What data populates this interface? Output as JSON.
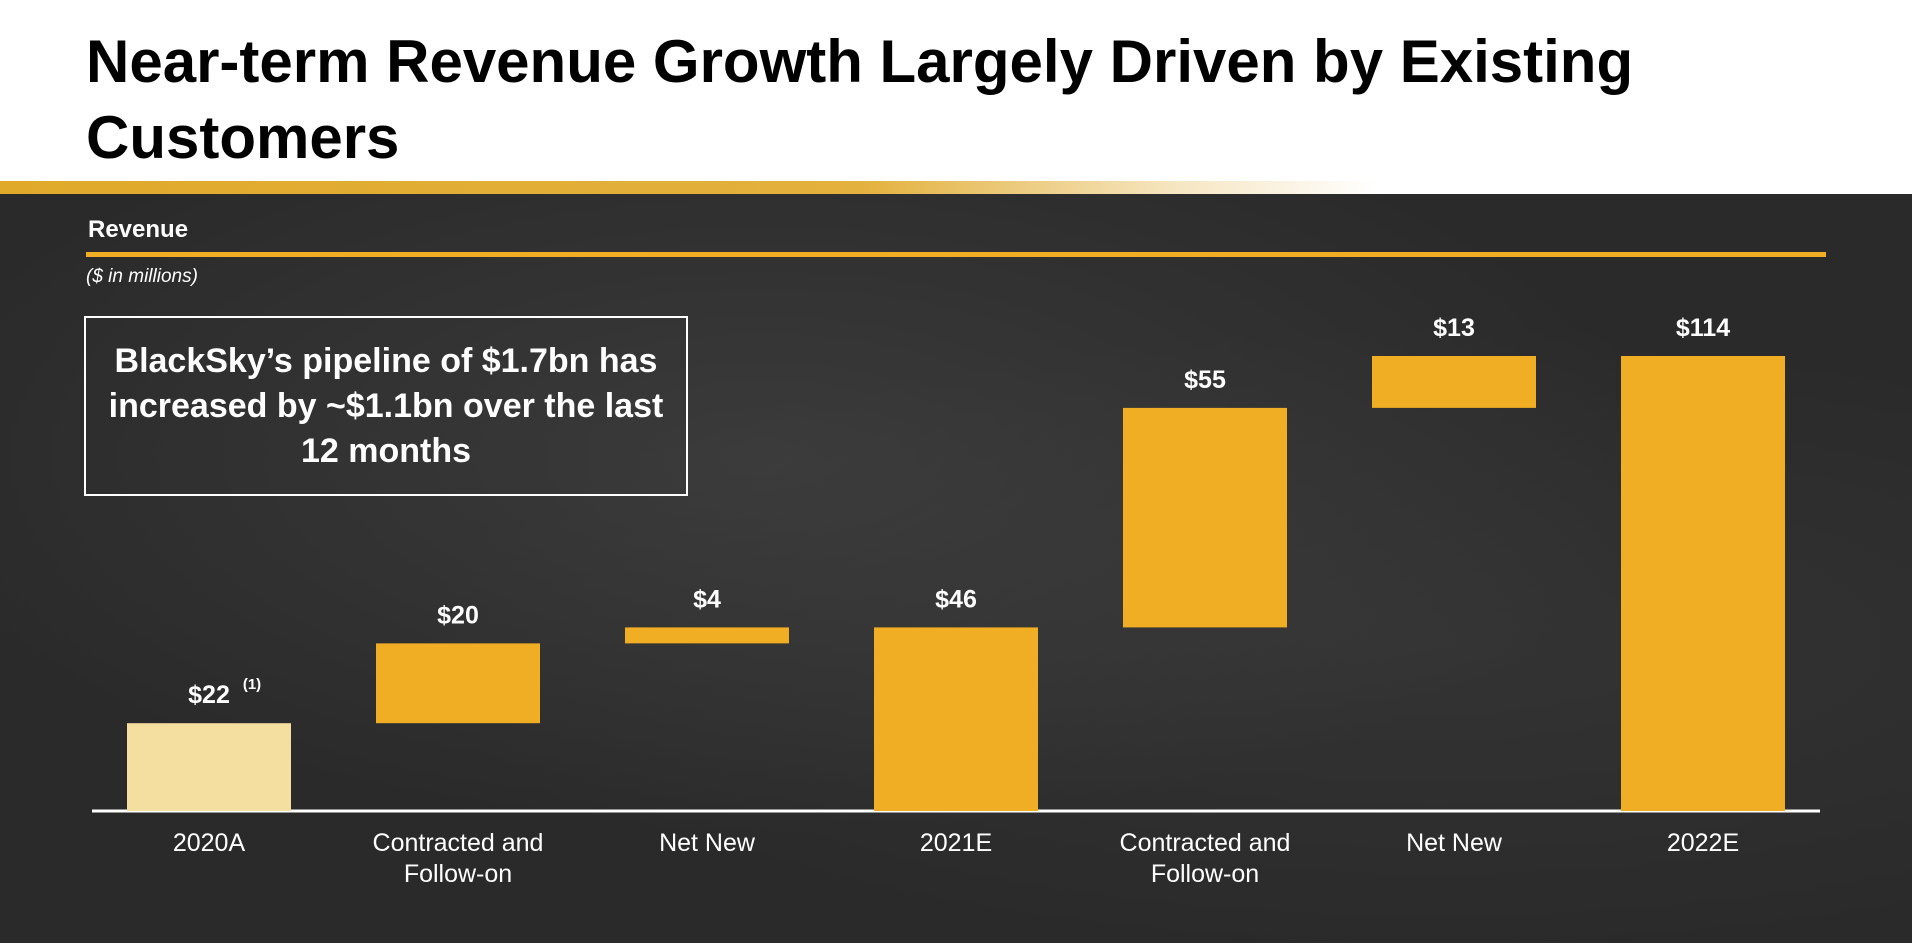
{
  "slide": {
    "title": "Near-term Revenue Growth Largely Driven by Existing Customers",
    "section_label": "Revenue",
    "units_note": "($ in millions)",
    "callout": "BlackSky’s pipeline of $1.7bn has increased by ~$1.1bn over the last 12 months"
  },
  "colors": {
    "accent": "#efae24",
    "bar_highlight": "#f4dfa0",
    "board": "#2a2a2a",
    "text_light": "#ffffff"
  },
  "chart_data": {
    "type": "bar",
    "subtype": "waterfall",
    "title": "",
    "xlabel": "",
    "ylabel": "",
    "ylim": [
      0,
      114
    ],
    "grid": false,
    "legend": "none",
    "categories": [
      "2020A",
      "Contracted and Follow-on",
      "Net New",
      "2021E",
      "Contracted and Follow-on",
      "Net New",
      "2022E"
    ],
    "category_lines": [
      [
        "2020A"
      ],
      [
        "Contracted and",
        "Follow-on"
      ],
      [
        "Net New"
      ],
      [
        "2021E"
      ],
      [
        "Contracted and",
        "Follow-on"
      ],
      [
        "Net New"
      ],
      [
        "2022E"
      ]
    ],
    "bars": [
      {
        "kind": "total",
        "base": 0,
        "value": 22,
        "label": "$22",
        "footnote": "(1)",
        "color": "#f4dfa0"
      },
      {
        "kind": "increment",
        "base": 22,
        "value": 20,
        "label": "$20",
        "color": "#efae24"
      },
      {
        "kind": "increment",
        "base": 42,
        "value": 4,
        "label": "$4",
        "color": "#efae24"
      },
      {
        "kind": "total",
        "base": 0,
        "value": 46,
        "label": "$46",
        "color": "#efae24"
      },
      {
        "kind": "increment",
        "base": 46,
        "value": 55,
        "label": "$55",
        "color": "#efae24"
      },
      {
        "kind": "increment",
        "base": 101,
        "value": 13,
        "label": "$13",
        "color": "#efae24"
      },
      {
        "kind": "total",
        "base": 0,
        "value": 114,
        "label": "$114",
        "color": "#efae24"
      }
    ]
  }
}
